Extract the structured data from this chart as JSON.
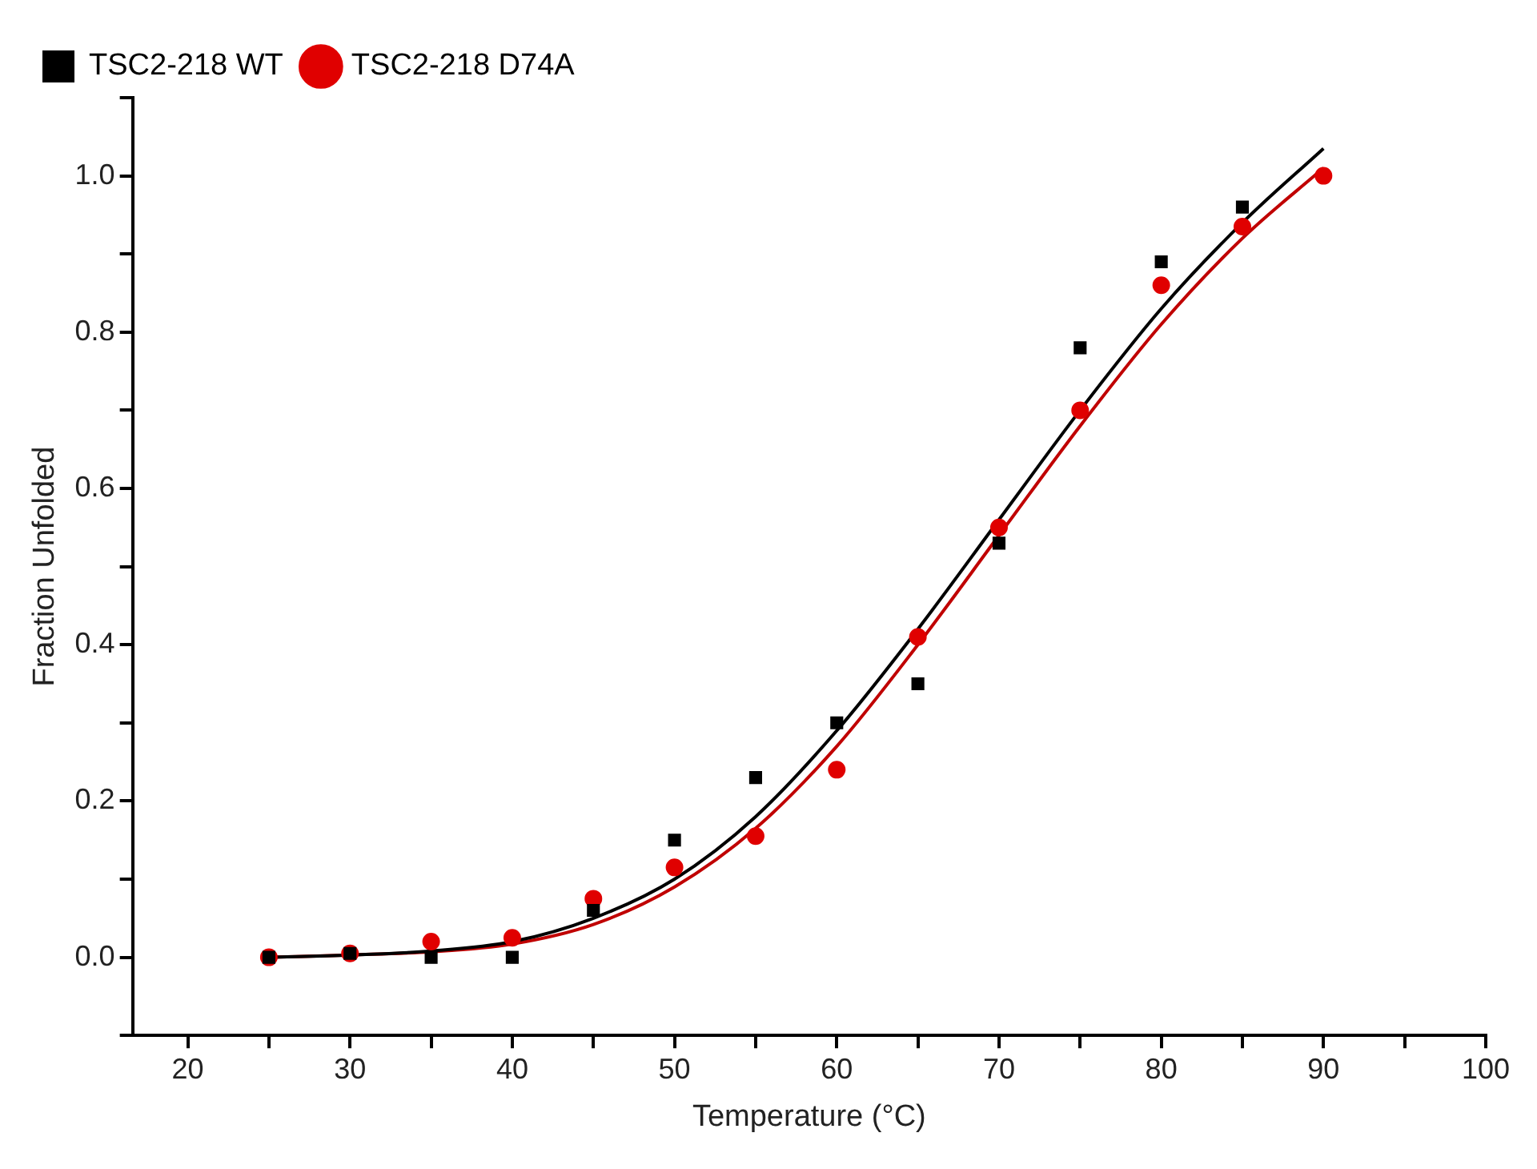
{
  "chart_data": {
    "type": "scatter",
    "xlabel": "Temperature (°C)",
    "ylabel": "Fraction Unfolded",
    "xlim": [
      16.6,
      100
    ],
    "ylim": [
      -0.1,
      1.1
    ],
    "xticks": [
      20,
      {
        "value": 25,
        "label": null
      },
      30,
      {
        "value": 35,
        "label": null
      },
      40,
      {
        "value": 45,
        "label": null
      },
      50,
      {
        "value": 55,
        "label": null
      },
      60,
      {
        "value": 65,
        "label": null
      },
      70,
      {
        "value": 75,
        "label": null
      },
      80,
      {
        "value": 85,
        "label": null
      },
      90,
      {
        "value": 95,
        "label": null
      },
      100
    ],
    "yticks": [
      {
        "value": -0.1,
        "label": null
      },
      {
        "value": 0,
        "label": "0.0"
      },
      {
        "value": 0.1,
        "label": null
      },
      {
        "value": 0.2,
        "label": "0.2"
      },
      {
        "value": 0.3,
        "label": null
      },
      {
        "value": 0.4,
        "label": "0.4"
      },
      {
        "value": 0.5,
        "label": null
      },
      {
        "value": 0.6,
        "label": "0.6"
      },
      {
        "value": 0.7,
        "label": null
      },
      {
        "value": 0.8,
        "label": "0.8"
      },
      {
        "value": 0.9,
        "label": null
      },
      {
        "value": 1.0,
        "label": "1.0"
      },
      {
        "value": 1.1,
        "label": null
      }
    ],
    "grid": false,
    "legend": "top left",
    "series": [
      {
        "name": "TSC2-218 WT",
        "color": "#000000",
        "marker": "square",
        "x": [
          25,
          30,
          35,
          40,
          45,
          50,
          55,
          60,
          65,
          70,
          75,
          80,
          85
        ],
        "values": [
          0,
          0.005,
          0,
          0,
          0.06,
          0.15,
          0.23,
          0.3,
          0.35,
          0.53,
          0.78,
          0.89,
          0.96
        ]
      },
      {
        "name": "TSC2-218 D74A",
        "color": "#e00000",
        "marker": "circle",
        "x": [
          25,
          30,
          35,
          40,
          45,
          50,
          55,
          60,
          65,
          70,
          75,
          80,
          85,
          90
        ],
        "values": [
          0,
          0.005,
          0.02,
          0.025,
          0.075,
          0.115,
          0.155,
          0.24,
          0.41,
          0.55,
          0.7,
          0.86,
          0.935,
          1.0
        ]
      },
      {
        "type": "line",
        "color": "#000000",
        "marker": "none",
        "x": [
          25,
          30,
          35,
          40,
          45,
          50,
          55,
          60,
          65,
          70,
          75,
          80,
          85,
          90
        ],
        "values": [
          0,
          0.003,
          0.008,
          0.02,
          0.05,
          0.1,
          0.18,
          0.29,
          0.42,
          0.56,
          0.7,
          0.83,
          0.94,
          1.035
        ]
      },
      {
        "type": "line",
        "color": "#c00000",
        "marker": "none",
        "x": [
          25,
          30,
          35,
          40,
          45,
          50,
          55,
          60,
          65,
          70,
          75,
          80,
          85,
          90
        ],
        "values": [
          0,
          0.003,
          0.007,
          0.017,
          0.042,
          0.09,
          0.165,
          0.27,
          0.4,
          0.54,
          0.68,
          0.81,
          0.92,
          1.01
        ]
      }
    ]
  }
}
